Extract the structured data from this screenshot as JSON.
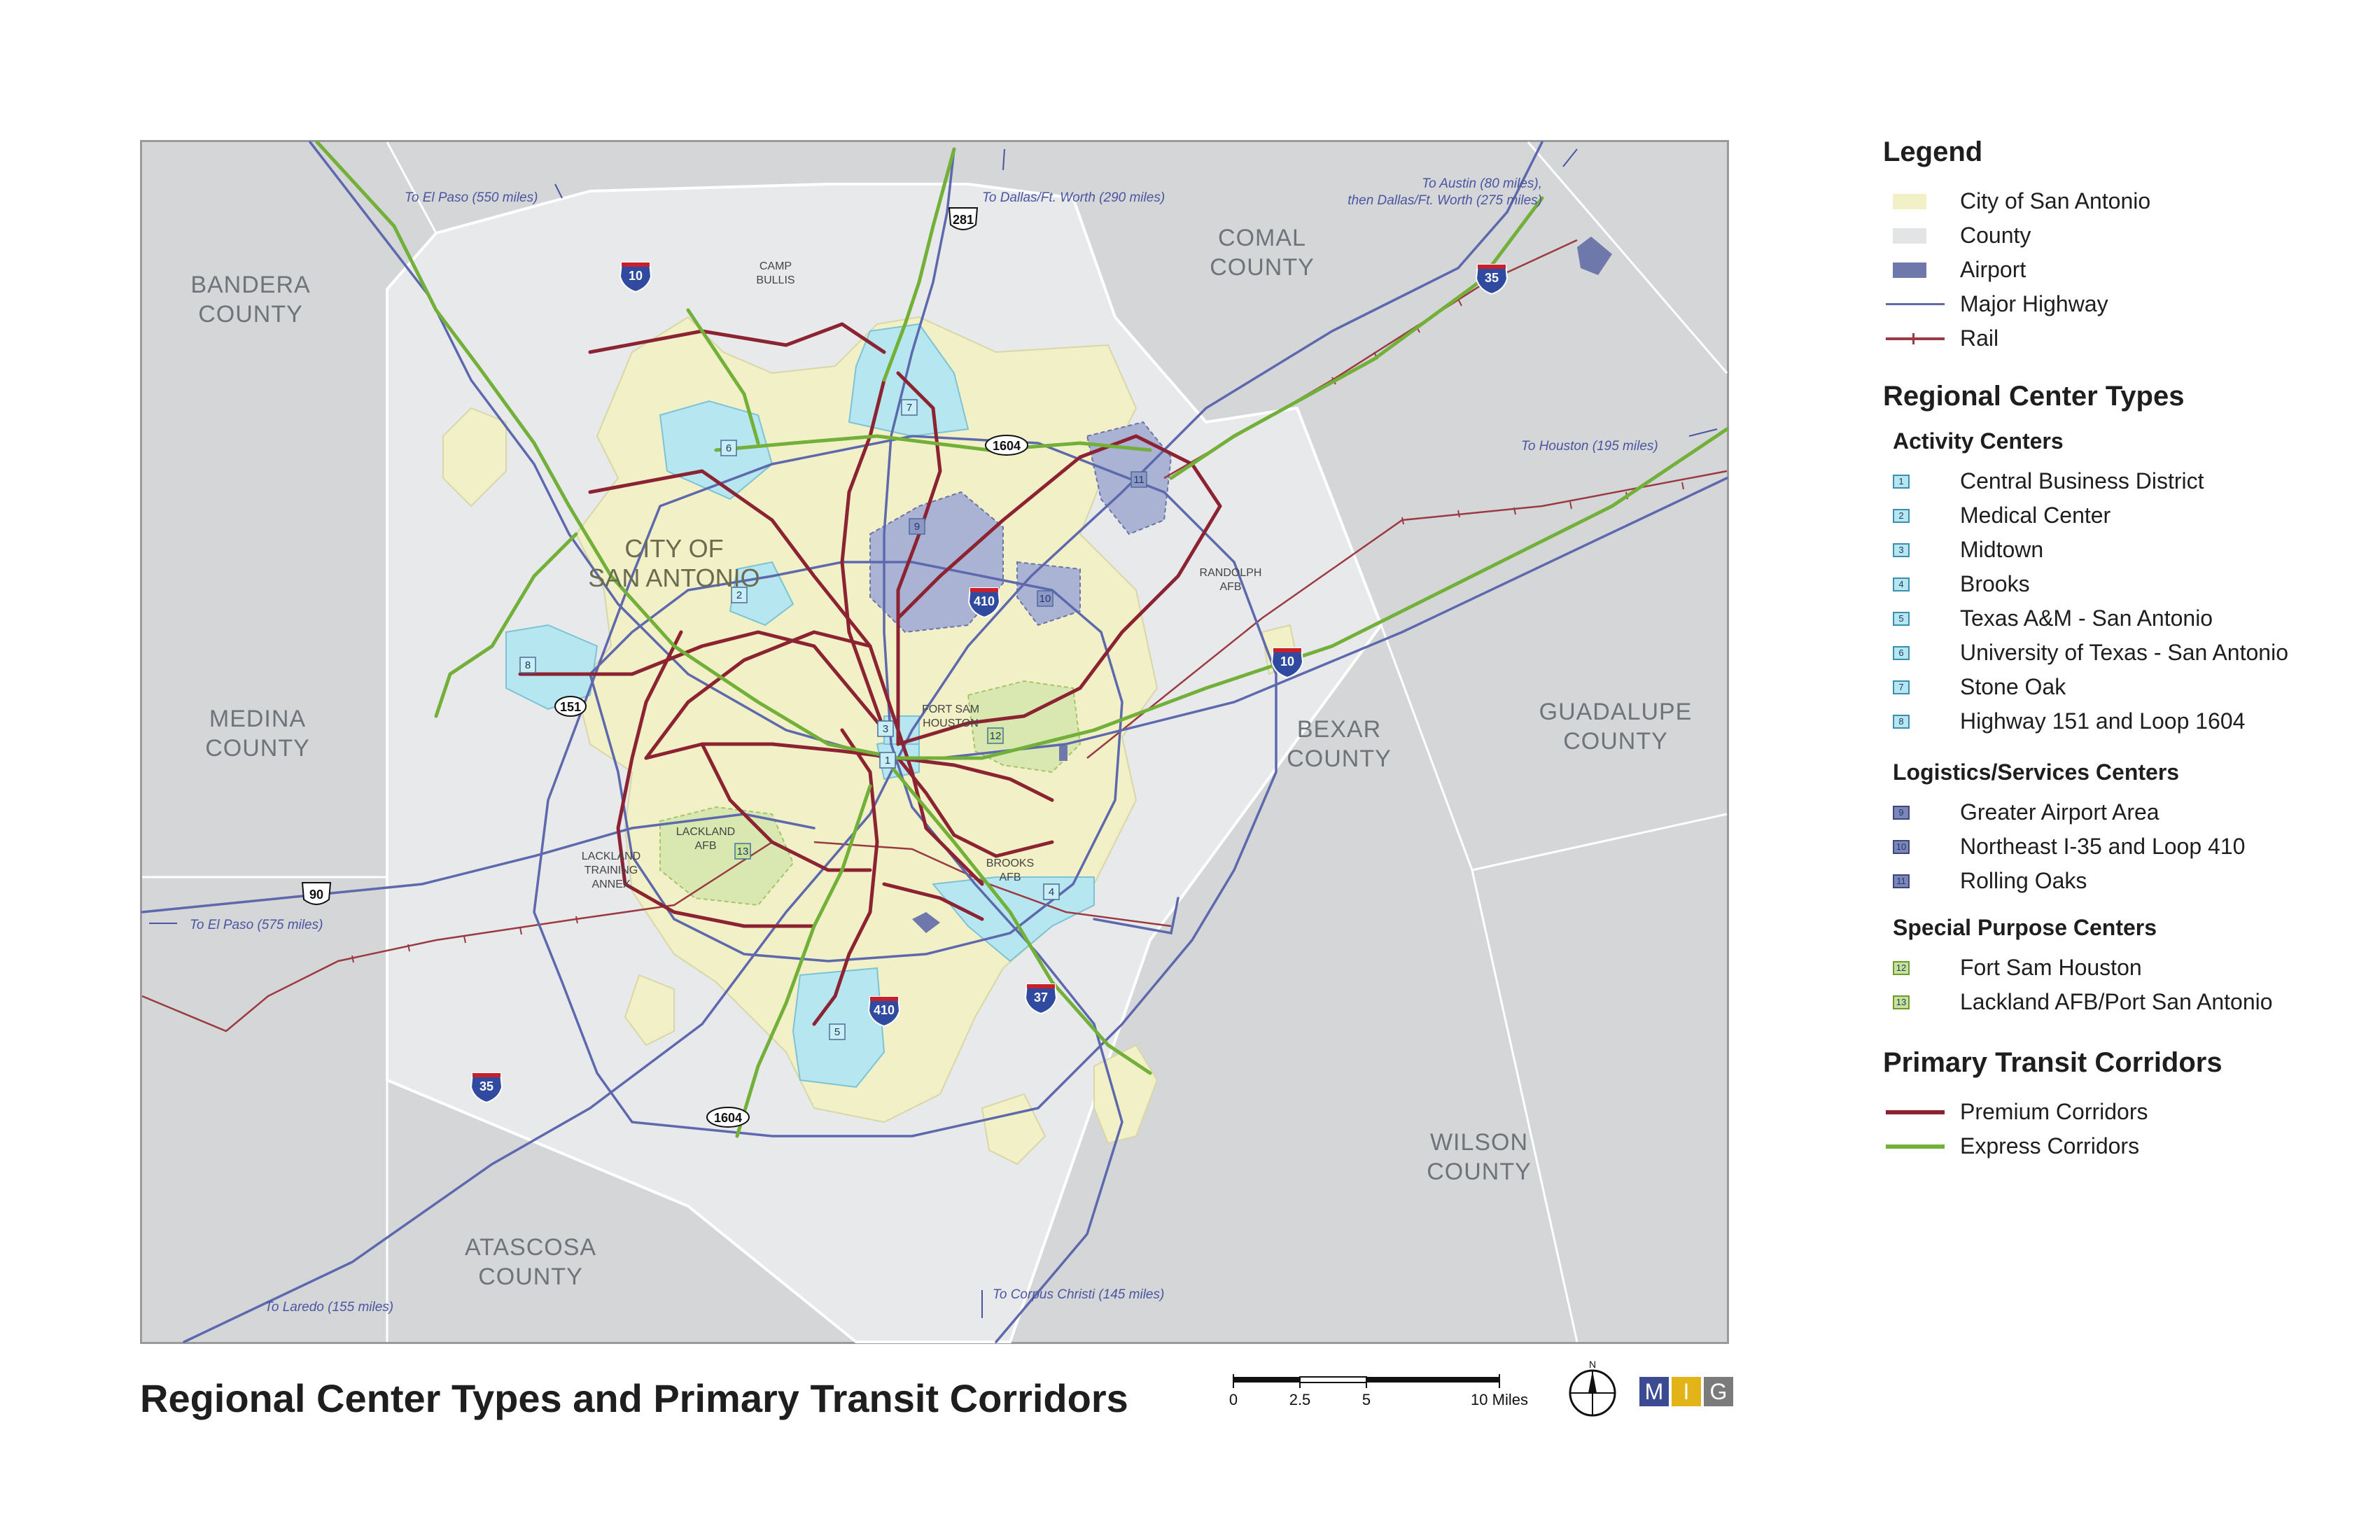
{
  "map": {
    "counties": {
      "bandera": "BANDERA\nCOUNTY",
      "comal": "COMAL\nCOUNTY",
      "medina": "MEDINA\nCOUNTY",
      "bexar": "BEXAR\nCOUNTY",
      "guadalupe": "GUADALUPE\nCOUNTY",
      "wilson": "WILSON\nCOUNTY",
      "atascosa": "ATASCOSA\nCOUNTY"
    },
    "city_label": "CITY OF\nSAN ANTONIO",
    "places": {
      "camp_bullis": "CAMP\nBULLIS",
      "randolph_afb": "RANDOLPH\nAFB",
      "fort_sam_houston": "FORT SAM\nHOUSTON",
      "lackland_afb": "LACKLAND\nAFB",
      "lackland_training_annex": "LACKLAND\nTRAINING\nANNEX",
      "brooks_afb": "BROOKS\nAFB"
    },
    "destinations": {
      "el_paso_north": "To El Paso (550 miles)",
      "dallas_fw": "To Dallas/Ft. Worth (290 miles)",
      "austin": "To Austin (80 miles),\nthen Dallas/Ft. Worth (275 miles)",
      "houston": "To Houston (195 miles)",
      "el_paso_west": "To El Paso (575 miles)",
      "laredo": "To Laredo (155 miles)",
      "corpus_christi": "To Corpus Christi (145 miles)"
    },
    "shields": {
      "i10_north": "10",
      "us281": "281",
      "i35_northeast": "35",
      "loop1604_north": "1604",
      "i410_north": "410",
      "i10_east": "10",
      "sh151": "151",
      "us90": "90",
      "i410_south": "410",
      "i37": "37",
      "i35_southwest": "35",
      "loop1604_south": "1604"
    },
    "center_numbers": [
      "1",
      "2",
      "3",
      "4",
      "5",
      "6",
      "7",
      "8",
      "9",
      "10",
      "11",
      "12",
      "13"
    ],
    "colors": {
      "city": "#f1f0c6",
      "county": "#e8e9ea",
      "outside": "#d4d6d8",
      "airport": "#7c85b4",
      "activity_center": "#b6e6ef",
      "logistics_center": "#aab3d4",
      "special_center": "#d8e8b0",
      "highway": "#5e69ad",
      "rail": "#9a3a42",
      "premium": "#8c2332",
      "express": "#72b03a"
    }
  },
  "legend": {
    "title": "Legend",
    "base_items": [
      {
        "label": "City of San Antonio",
        "color": "#f1f0c6",
        "kind": "fill"
      },
      {
        "label": "County",
        "color": "#e3e4e6",
        "kind": "fill"
      },
      {
        "label": "Airport",
        "color": "#6f78ab",
        "kind": "fill"
      },
      {
        "label": "Major Highway",
        "color": "#5e69ad",
        "kind": "line"
      },
      {
        "label": "Rail",
        "color": "#9a3a42",
        "kind": "rail"
      }
    ],
    "center_types_title": "Regional Center Types",
    "activity_title": "Activity Centers",
    "activity_items": [
      {
        "num": "1",
        "label": "Central Business District"
      },
      {
        "num": "2",
        "label": "Medical Center"
      },
      {
        "num": "3",
        "label": "Midtown"
      },
      {
        "num": "4",
        "label": "Brooks"
      },
      {
        "num": "5",
        "label": "Texas A&M - San Antonio"
      },
      {
        "num": "6",
        "label": "University of Texas - San Antonio"
      },
      {
        "num": "7",
        "label": "Stone Oak"
      },
      {
        "num": "8",
        "label": "Highway 151 and Loop 1604"
      }
    ],
    "logistics_title": "Logistics/Services Centers",
    "logistics_items": [
      {
        "num": "9",
        "label": "Greater Airport Area"
      },
      {
        "num": "10",
        "label": "Northeast I-35 and Loop 410"
      },
      {
        "num": "11",
        "label": "Rolling Oaks"
      }
    ],
    "special_title": "Special Purpose Centers",
    "special_items": [
      {
        "num": "12",
        "label": "Fort Sam Houston"
      },
      {
        "num": "13",
        "label": "Lackland AFB/Port San Antonio"
      }
    ],
    "corridors_title": "Primary Transit Corridors",
    "corridor_items": [
      {
        "label": "Premium Corridors",
        "color": "#8c2332"
      },
      {
        "label": "Express Corridors",
        "color": "#72b03a"
      }
    ]
  },
  "title": "Regional Center Types and Primary Transit Corridors",
  "scalebar": {
    "ticks": [
      "0",
      "2.5",
      "5",
      "10 Miles"
    ]
  },
  "north_label": "N",
  "logo": {
    "letters": [
      "M",
      "I",
      "G"
    ],
    "colors": [
      "#3b4a91",
      "#e3b418",
      "#7b7b7b"
    ]
  }
}
